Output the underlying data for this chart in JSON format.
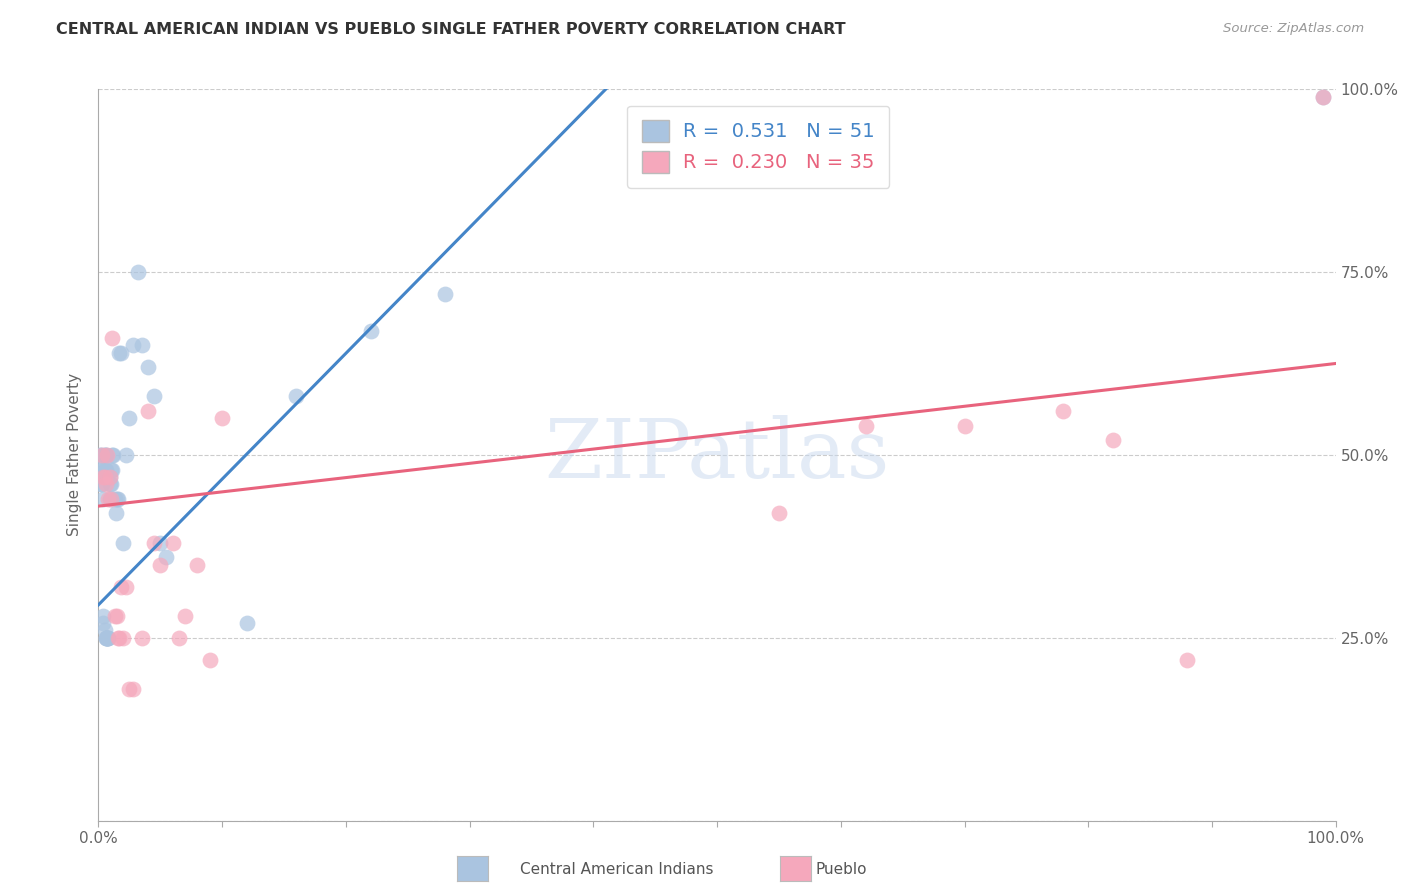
{
  "title": "CENTRAL AMERICAN INDIAN VS PUEBLO SINGLE FATHER POVERTY CORRELATION CHART",
  "source": "Source: ZipAtlas.com",
  "ylabel": "Single Father Poverty",
  "xlim": [
    0,
    1
  ],
  "ylim": [
    0,
    1
  ],
  "ytick_positions": [
    0.0,
    0.25,
    0.5,
    0.75,
    1.0
  ],
  "ytick_labels_right": [
    "",
    "25.0%",
    "50.0%",
    "75.0%",
    "100.0%"
  ],
  "xtick_positions": [
    0.0,
    0.1,
    0.2,
    0.3,
    0.4,
    0.5,
    0.6,
    0.7,
    0.8,
    0.9,
    1.0
  ],
  "xtick_labels": [
    "0.0%",
    "",
    "",
    "",
    "",
    "",
    "",
    "",
    "",
    "",
    "100.0%"
  ],
  "blue_color": "#aac4e0",
  "pink_color": "#f5a8bc",
  "blue_line_color": "#4485c8",
  "pink_line_color": "#e8637d",
  "blue_scatter_x": [
    0.001,
    0.001,
    0.002,
    0.002,
    0.003,
    0.003,
    0.004,
    0.004,
    0.004,
    0.005,
    0.005,
    0.005,
    0.005,
    0.006,
    0.006,
    0.006,
    0.006,
    0.007,
    0.007,
    0.007,
    0.008,
    0.008,
    0.009,
    0.009,
    0.009,
    0.01,
    0.01,
    0.011,
    0.011,
    0.012,
    0.013,
    0.014,
    0.015,
    0.016,
    0.017,
    0.018,
    0.02,
    0.022,
    0.025,
    0.028,
    0.032,
    0.035,
    0.04,
    0.045,
    0.05,
    0.055,
    0.12,
    0.16,
    0.22,
    0.28,
    0.99
  ],
  "blue_scatter_y": [
    0.5,
    0.48,
    0.5,
    0.46,
    0.48,
    0.46,
    0.44,
    0.28,
    0.27,
    0.5,
    0.5,
    0.48,
    0.26,
    0.5,
    0.48,
    0.25,
    0.25,
    0.25,
    0.25,
    0.25,
    0.25,
    0.25,
    0.47,
    0.46,
    0.44,
    0.48,
    0.46,
    0.5,
    0.48,
    0.5,
    0.44,
    0.42,
    0.44,
    0.44,
    0.64,
    0.64,
    0.38,
    0.5,
    0.55,
    0.65,
    0.75,
    0.65,
    0.62,
    0.58,
    0.38,
    0.36,
    0.27,
    0.58,
    0.67,
    0.72,
    0.99
  ],
  "pink_scatter_x": [
    0.003,
    0.004,
    0.005,
    0.006,
    0.007,
    0.008,
    0.009,
    0.01,
    0.011,
    0.013,
    0.015,
    0.016,
    0.017,
    0.018,
    0.02,
    0.022,
    0.025,
    0.028,
    0.035,
    0.04,
    0.045,
    0.05,
    0.06,
    0.065,
    0.07,
    0.08,
    0.09,
    0.1,
    0.55,
    0.62,
    0.7,
    0.78,
    0.82,
    0.88,
    0.99
  ],
  "pink_scatter_y": [
    0.5,
    0.47,
    0.47,
    0.46,
    0.5,
    0.44,
    0.47,
    0.44,
    0.66,
    0.28,
    0.28,
    0.25,
    0.25,
    0.32,
    0.25,
    0.32,
    0.18,
    0.18,
    0.25,
    0.56,
    0.38,
    0.35,
    0.38,
    0.25,
    0.28,
    0.35,
    0.22,
    0.55,
    0.42,
    0.54,
    0.54,
    0.56,
    0.52,
    0.22,
    0.99
  ],
  "blue_line_x": [
    0.0,
    0.41
  ],
  "blue_line_y": [
    0.295,
    1.0
  ],
  "pink_line_x": [
    0.0,
    1.0
  ],
  "pink_line_y": [
    0.43,
    0.625
  ],
  "legend_label_1": "R =  0.531   N = 51",
  "legend_label_2": "R =  0.230   N = 35",
  "bottom_label_1": "Central American Indians",
  "bottom_label_2": "Pueblo",
  "watermark_text": "ZIPatlas",
  "watermark_color": "#c8d8ee",
  "watermark_alpha": 0.5
}
